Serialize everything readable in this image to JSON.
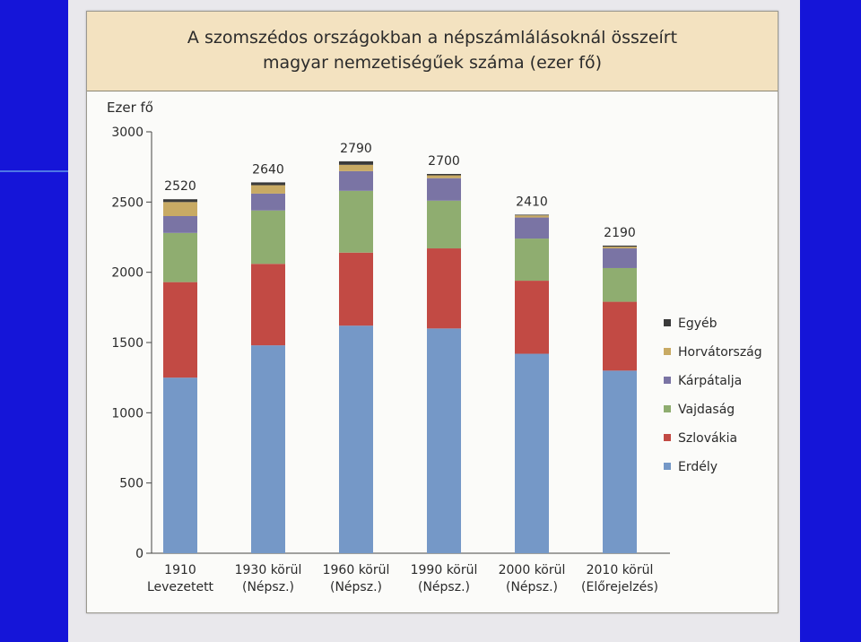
{
  "chart_data": {
    "type": "bar",
    "stacked": true,
    "title": "A szomszédos országokban a népszámlálásoknál összeírt magyar nemzetiségűek száma (ezer fő)",
    "title_lines": [
      "A szomszédos országokban a népszámlálásoknál összeírt",
      "magyar nemzetiségűek száma (ezer fő)"
    ],
    "ylabel": "Ezer fő",
    "xlabel": "",
    "ylim": [
      0,
      3000
    ],
    "yticks": [
      0,
      500,
      1000,
      1500,
      2000,
      2500,
      3000
    ],
    "yticks_text": [
      "0",
      "500",
      "1000",
      "1500",
      "2000",
      "2500",
      "3000"
    ],
    "grid": false,
    "legend_position": "right",
    "categories": [
      [
        "1910",
        "Levezetett"
      ],
      [
        "1930 körül",
        "(Népsz.)"
      ],
      [
        "1960 körül",
        "(Népsz.)"
      ],
      [
        "1990 körül",
        "(Népsz.)"
      ],
      [
        "2000 körül",
        "(Népsz.)"
      ],
      [
        "2010 körül",
        "(Előrejelzés)"
      ]
    ],
    "totals": [
      "2520",
      "2640",
      "2790",
      "2700",
      "2410",
      "2190"
    ],
    "series": [
      {
        "name": "Erdély",
        "color": "#7598c7",
        "values": [
          1250,
          1480,
          1620,
          1600,
          1420,
          1300
        ]
      },
      {
        "name": "Szlovákia",
        "color": "#c24a44",
        "values": [
          680,
          580,
          520,
          570,
          520,
          490
        ]
      },
      {
        "name": "Vajdaság",
        "color": "#8fad70",
        "values": [
          350,
          380,
          440,
          340,
          300,
          240
        ]
      },
      {
        "name": "Kárpátalja",
        "color": "#7a74a4",
        "values": [
          120,
          120,
          140,
          160,
          150,
          140
        ]
      },
      {
        "name": "Horvátország",
        "color": "#c8aa64",
        "values": [
          100,
          60,
          45,
          20,
          15,
          12
        ]
      },
      {
        "name": "Egyéb",
        "color": "#3a3a3a",
        "values": [
          20,
          20,
          25,
          10,
          5,
          8
        ]
      }
    ],
    "legend_order": [
      "Egyéb",
      "Horvátország",
      "Kárpátalja",
      "Vajdaság",
      "Szlovákia",
      "Erdély"
    ]
  }
}
